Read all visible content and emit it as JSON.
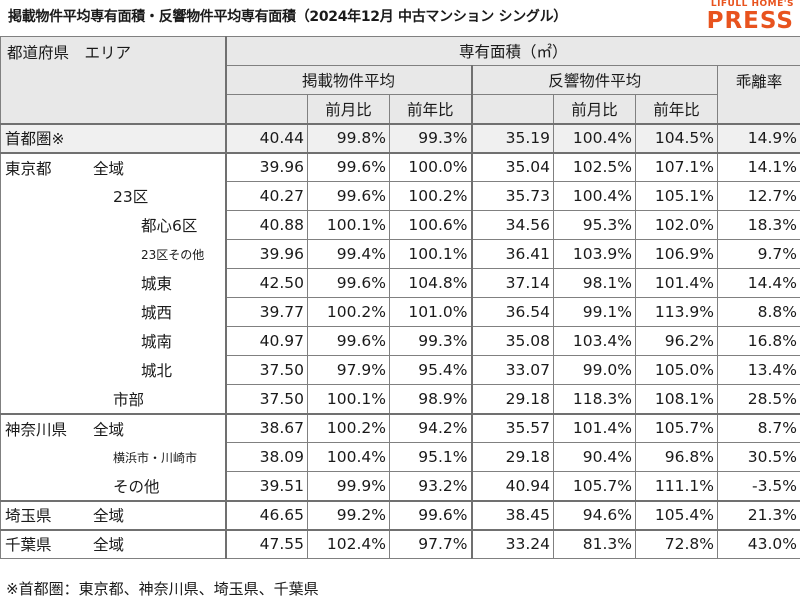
{
  "title": "掲載物件平均専有面積・反響物件平均専有面積（2024年12月 中古マンション シングル）",
  "brand": {
    "top": "LIFULL HOME'S",
    "main": "PRESS",
    "color": "#e8531e"
  },
  "header": {
    "corner": "都道府県　エリア",
    "group": "専有面積（㎡）",
    "listed": "掲載物件平均",
    "response": "反響物件平均",
    "divergence": "乖離率",
    "mom": "前月比",
    "yoy": "前年比"
  },
  "rows": [
    {
      "pref": "首都圏※",
      "area": "",
      "listed": "40.44",
      "listed_mom": "99.8%",
      "listed_yoy": "99.3%",
      "resp": "35.19",
      "resp_mom": "100.4%",
      "resp_yoy": "104.5%",
      "div": "14.9%"
    },
    {
      "pref": "東京都",
      "area": "全域",
      "listed": "39.96",
      "listed_mom": "99.6%",
      "listed_yoy": "100.0%",
      "resp": "35.04",
      "resp_mom": "102.5%",
      "resp_yoy": "107.1%",
      "div": "14.1%"
    },
    {
      "pref": "",
      "area": "23区",
      "listed": "40.27",
      "listed_mom": "99.6%",
      "listed_yoy": "100.2%",
      "resp": "35.73",
      "resp_mom": "100.4%",
      "resp_yoy": "105.1%",
      "div": "12.7%"
    },
    {
      "pref": "",
      "area": "都心6区",
      "listed": "40.88",
      "listed_mom": "100.1%",
      "listed_yoy": "100.6%",
      "resp": "34.56",
      "resp_mom": "95.3%",
      "resp_yoy": "102.0%",
      "div": "18.3%"
    },
    {
      "pref": "",
      "area": "23区その他",
      "listed": "39.96",
      "listed_mom": "99.4%",
      "listed_yoy": "100.1%",
      "resp": "36.41",
      "resp_mom": "103.9%",
      "resp_yoy": "106.9%",
      "div": "9.7%"
    },
    {
      "pref": "",
      "area": "城東",
      "listed": "42.50",
      "listed_mom": "99.6%",
      "listed_yoy": "104.8%",
      "resp": "37.14",
      "resp_mom": "98.1%",
      "resp_yoy": "101.4%",
      "div": "14.4%"
    },
    {
      "pref": "",
      "area": "城西",
      "listed": "39.77",
      "listed_mom": "100.2%",
      "listed_yoy": "101.0%",
      "resp": "36.54",
      "resp_mom": "99.1%",
      "resp_yoy": "113.9%",
      "div": "8.8%"
    },
    {
      "pref": "",
      "area": "城南",
      "listed": "40.97",
      "listed_mom": "99.6%",
      "listed_yoy": "99.3%",
      "resp": "35.08",
      "resp_mom": "103.4%",
      "resp_yoy": "96.2%",
      "div": "16.8%"
    },
    {
      "pref": "",
      "area": "城北",
      "listed": "37.50",
      "listed_mom": "97.9%",
      "listed_yoy": "95.4%",
      "resp": "33.07",
      "resp_mom": "99.0%",
      "resp_yoy": "105.0%",
      "div": "13.4%"
    },
    {
      "pref": "",
      "area": "市部",
      "listed": "37.50",
      "listed_mom": "100.1%",
      "listed_yoy": "98.9%",
      "resp": "29.18",
      "resp_mom": "118.3%",
      "resp_yoy": "108.1%",
      "div": "28.5%"
    },
    {
      "pref": "神奈川県",
      "area": "全域",
      "listed": "38.67",
      "listed_mom": "100.2%",
      "listed_yoy": "94.2%",
      "resp": "35.57",
      "resp_mom": "101.4%",
      "resp_yoy": "105.7%",
      "div": "8.7%"
    },
    {
      "pref": "",
      "area": "横浜市・川崎市",
      "listed": "38.09",
      "listed_mom": "100.4%",
      "listed_yoy": "95.1%",
      "resp": "29.18",
      "resp_mom": "90.4%",
      "resp_yoy": "96.8%",
      "div": "30.5%"
    },
    {
      "pref": "",
      "area": "その他",
      "listed": "39.51",
      "listed_mom": "99.9%",
      "listed_yoy": "93.2%",
      "resp": "40.94",
      "resp_mom": "105.7%",
      "resp_yoy": "111.1%",
      "div": "-3.5%"
    },
    {
      "pref": "埼玉県",
      "area": "全域",
      "listed": "46.65",
      "listed_mom": "99.2%",
      "listed_yoy": "99.6%",
      "resp": "38.45",
      "resp_mom": "94.6%",
      "resp_yoy": "105.4%",
      "div": "21.3%"
    },
    {
      "pref": "千葉県",
      "area": "全域",
      "listed": "47.55",
      "listed_mom": "102.4%",
      "listed_yoy": "97.7%",
      "resp": "33.24",
      "resp_mom": "81.3%",
      "resp_yoy": "72.8%",
      "div": "43.0%"
    }
  ],
  "footnote": "※首都圏：東京都、神奈川県、埼玉県、千葉県"
}
